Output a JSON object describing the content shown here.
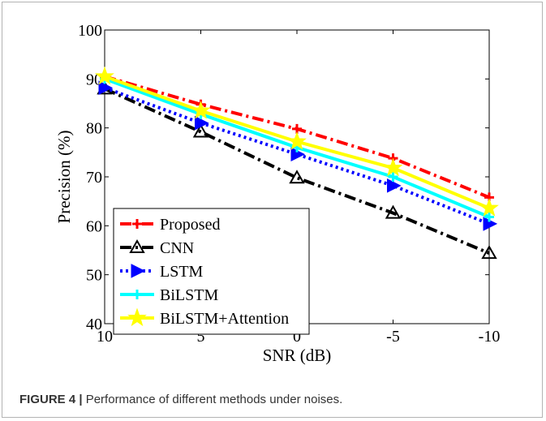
{
  "figure": {
    "caption_label": "FIGURE 4 |",
    "caption_text": " Performance of different methods under noises."
  },
  "chart_data": {
    "type": "line",
    "title": "",
    "xlabel": "SNR (dB)",
    "ylabel": "Precision (%)",
    "x": [
      10,
      5,
      0,
      -5,
      -10
    ],
    "x_tick_labels": [
      "10",
      "5",
      "0",
      "-5",
      "-10"
    ],
    "y_ticks": [
      40,
      50,
      60,
      70,
      80,
      90,
      100
    ],
    "y_tick_labels": [
      "40",
      "50",
      "60",
      "70",
      "80",
      "90",
      "100"
    ],
    "ylim": [
      40,
      100
    ],
    "grid": false,
    "legend_position": "bottom-left",
    "series": [
      {
        "name": "Proposed",
        "color": "#ff0000",
        "dash": "dash-dot",
        "marker": "plus",
        "values": [
          90.5,
          84.8,
          79.8,
          73.8,
          65.8
        ]
      },
      {
        "name": "CNN",
        "color": "#000000",
        "dash": "dash-dot",
        "marker": "triangle-up",
        "values": [
          88.0,
          79.2,
          69.8,
          62.6,
          54.4
        ]
      },
      {
        "name": "LSTM",
        "color": "#0000ff",
        "dash": "dotted",
        "marker": "triangle-right",
        "values": [
          88.2,
          81.0,
          74.6,
          68.2,
          60.4
        ]
      },
      {
        "name": "BiLSTM",
        "color": "#00ffff",
        "dash": "solid",
        "marker": "plus",
        "values": [
          90.0,
          82.8,
          76.0,
          70.0,
          61.8
        ]
      },
      {
        "name": "BiLSTM+Attention",
        "color": "#ffff00",
        "dash": "solid",
        "marker": "star",
        "values": [
          90.5,
          83.5,
          77.2,
          71.8,
          63.6
        ]
      }
    ]
  }
}
